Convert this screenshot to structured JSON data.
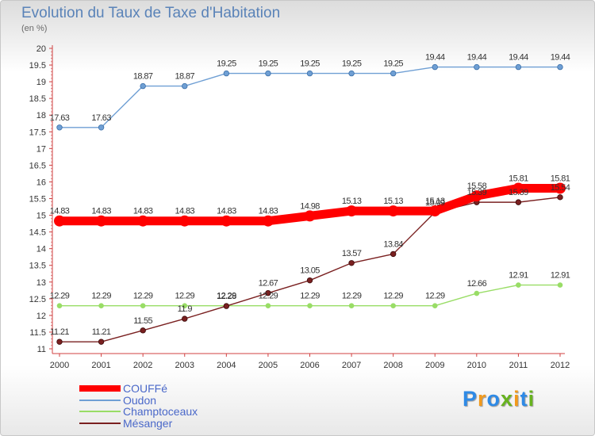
{
  "header": {
    "title": "Evolution du Taux de Taxe d'Habitation",
    "unit": "(en %)"
  },
  "logo": {
    "letters": [
      "P",
      "r",
      "o",
      "x",
      "i",
      "t",
      "i"
    ],
    "colors": [
      "#2e8ae6",
      "#f29a1c",
      "#2e8ae6",
      "#67b31f",
      "#f29a1c",
      "#2e8ae6",
      "#67b31f"
    ]
  },
  "chart_data": {
    "type": "line",
    "title": "Evolution du Taux de Taxe d'Habitation",
    "ylabel": "(en %)",
    "xlabel": "",
    "x": [
      "2000",
      "2001",
      "2002",
      "2003",
      "2004",
      "2005",
      "2006",
      "2007",
      "2008",
      "2009",
      "2010",
      "2011",
      "2012"
    ],
    "ylim": [
      11,
      20
    ],
    "yticks": [
      "11",
      "11.5",
      "12",
      "12.5",
      "13",
      "13.5",
      "14",
      "14.5",
      "15",
      "15.5",
      "16",
      "16.5",
      "17",
      "17.5",
      "18",
      "18.5",
      "19",
      "19.5",
      "20"
    ],
    "grid": false,
    "legend": "bottom-left",
    "series": [
      {
        "name": "COUFFé",
        "color": "#ff0000",
        "values": [
          14.83,
          14.83,
          14.83,
          14.83,
          14.83,
          14.83,
          14.98,
          15.13,
          15.13,
          15.13,
          15.58,
          15.81,
          15.81
        ],
        "labels": [
          "14.83",
          "14.83",
          "14.83",
          "14.83",
          "14.83",
          "14.83",
          "14.98",
          "15.13",
          "15.13",
          "15.13",
          "15.58",
          "15.81",
          "15.81"
        ]
      },
      {
        "name": "Oudon",
        "color": "#6f9fd4",
        "values": [
          17.63,
          17.63,
          18.87,
          18.87,
          19.25,
          19.25,
          19.25,
          19.25,
          19.25,
          19.44,
          19.44,
          19.44,
          19.44
        ],
        "labels": [
          "17.63",
          "17.63",
          "18.87",
          "18.87",
          "19.25",
          "19.25",
          "19.25",
          "19.25",
          "19.25",
          "19.44",
          "19.44",
          "19.44",
          "19.44"
        ]
      },
      {
        "name": "Champtoceaux",
        "color": "#99dd66",
        "values": [
          12.29,
          12.29,
          12.29,
          12.29,
          12.29,
          12.29,
          12.29,
          12.29,
          12.29,
          12.29,
          12.66,
          12.91,
          12.91
        ],
        "labels": [
          "12.29",
          "12.29",
          "12.29",
          "12.29",
          "12.29",
          "12.29",
          "12.29",
          "12.29",
          "12.29",
          "12.29",
          "12.66",
          "12.91",
          "12.91"
        ]
      },
      {
        "name": "Mésanger",
        "color": "#7a2020",
        "values": [
          11.21,
          11.21,
          11.55,
          11.9,
          12.28,
          12.67,
          13.05,
          13.57,
          13.84,
          15.09,
          15.39,
          15.39,
          15.54
        ],
        "labels": [
          "11.21",
          "11.21",
          "11.55",
          "11.9",
          "12.28",
          "12.67",
          "13.05",
          "13.57",
          "13.84",
          "15.09",
          "15.39",
          "15.39",
          "15.54"
        ]
      }
    ]
  }
}
